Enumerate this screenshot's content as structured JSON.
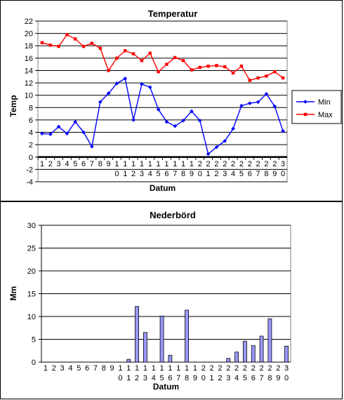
{
  "chart_data": [
    {
      "type": "line",
      "title": "Temperatur",
      "xlabel": "Datum",
      "ylabel": "Temp",
      "ylim": [
        -4,
        22
      ],
      "ytick_step": 2,
      "grid": true,
      "legend": "right",
      "x": [
        "1",
        "2",
        "3",
        "4",
        "5",
        "6",
        "7",
        "8",
        "9",
        "10",
        "11",
        "12",
        "13",
        "14",
        "15",
        "16",
        "17",
        "18",
        "19",
        "20",
        "21",
        "22",
        "23",
        "24",
        "25",
        "26",
        "27",
        "28",
        "29",
        "30"
      ],
      "series": [
        {
          "name": "Min",
          "color": "#0000ff",
          "values": [
            3.8,
            3.7,
            4.9,
            3.8,
            5.7,
            4.0,
            1.7,
            8.9,
            10.3,
            11.9,
            12.7,
            6.0,
            11.8,
            11.3,
            7.7,
            5.7,
            5.0,
            5.9,
            7.4,
            5.9,
            0.5,
            1.6,
            2.6,
            4.6,
            8.3,
            8.7,
            8.9,
            10.2,
            8.2,
            4.2
          ]
        },
        {
          "name": "Max",
          "color": "#ff0000",
          "values": [
            18.5,
            18.1,
            17.9,
            19.8,
            19.1,
            17.9,
            18.4,
            17.6,
            14.0,
            16.0,
            17.2,
            16.7,
            15.6,
            16.8,
            13.8,
            15.0,
            16.1,
            15.6,
            14.1,
            14.5,
            14.7,
            14.8,
            14.6,
            13.6,
            14.7,
            12.4,
            12.8,
            13.1,
            13.8,
            12.8
          ]
        }
      ]
    },
    {
      "type": "bar",
      "title": "Nederbörd",
      "xlabel": "Datum",
      "ylabel": "Mm",
      "ylim": [
        0,
        30
      ],
      "ytick_step": 5,
      "grid": true,
      "bar_color": "#9999ff",
      "categories": [
        "1",
        "2",
        "3",
        "4",
        "5",
        "6",
        "7",
        "8",
        "9",
        "10",
        "11",
        "12",
        "13",
        "14",
        "15",
        "16",
        "17",
        "18",
        "19",
        "20",
        "21",
        "22",
        "23",
        "24",
        "25",
        "26",
        "27",
        "28",
        "29",
        "30"
      ],
      "values": [
        0,
        0,
        0,
        0,
        0,
        0,
        0,
        0,
        0,
        0,
        0.6,
        12.2,
        6.5,
        0,
        10.1,
        1.5,
        0,
        11.4,
        0,
        0,
        0,
        0,
        0.8,
        2.2,
        4.6,
        3.6,
        5.7,
        9.5,
        0,
        3.5
      ]
    }
  ]
}
